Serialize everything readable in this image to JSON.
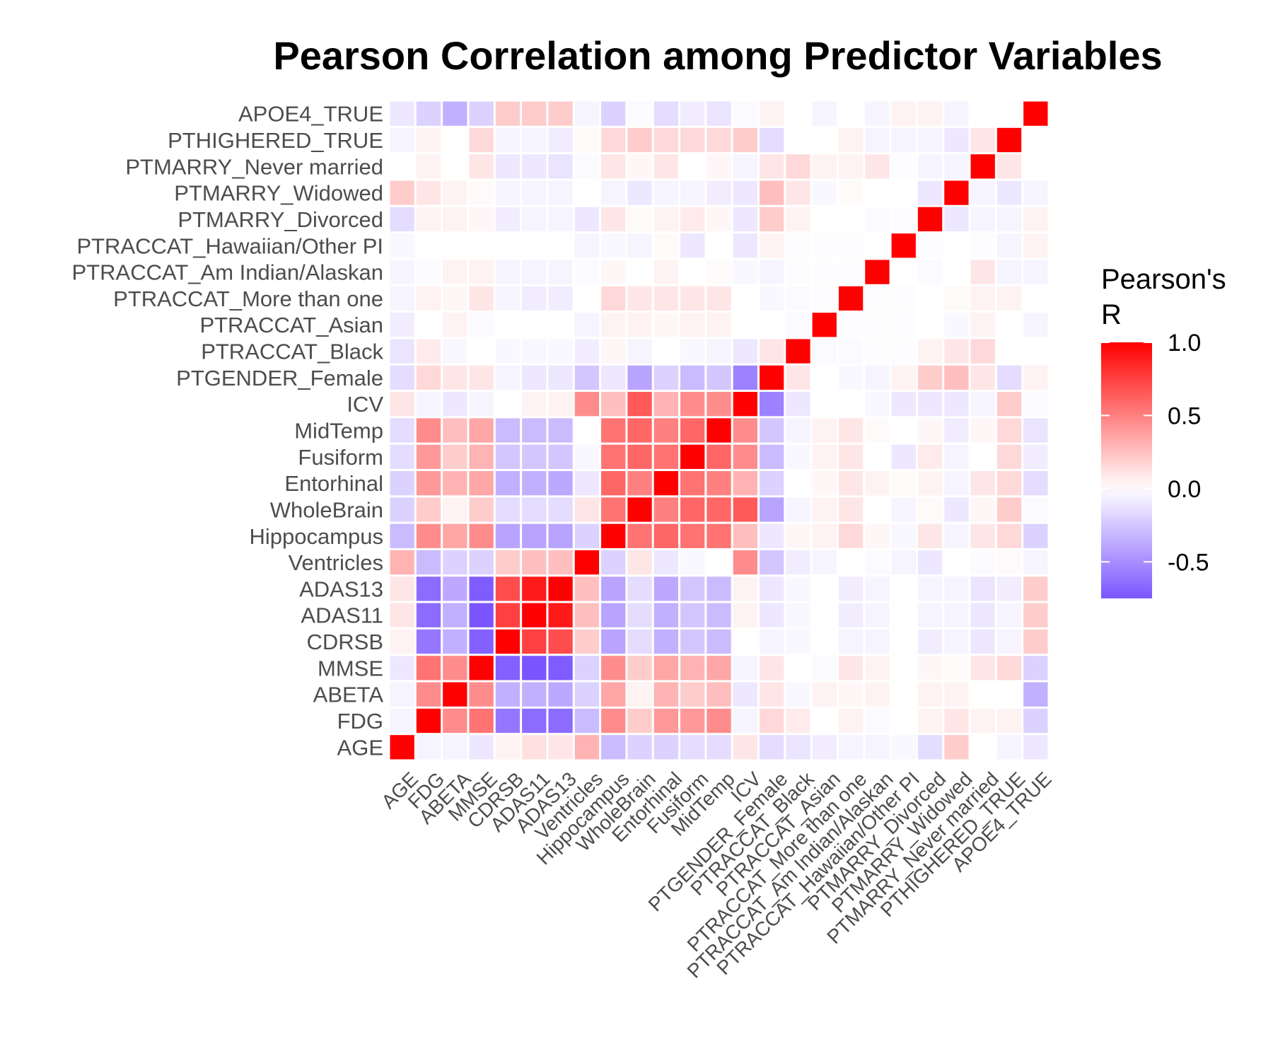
{
  "chart_data": {
    "type": "heatmap",
    "title": "Pearson Correlation among Predictor Variables",
    "legend": {
      "title_lines": [
        "Pearson's",
        "R"
      ],
      "ticks": [
        1.0,
        0.5,
        0.0,
        -0.5
      ],
      "tick_labels": [
        "1.0",
        "0.5",
        "0.0",
        "-0.5"
      ],
      "range": [
        -0.75,
        1.0
      ],
      "placement": "right"
    },
    "colors": {
      "low": "#7a55ff",
      "mid": "#ffffff",
      "high": "#ff0000"
    },
    "variables": [
      "AGE",
      "FDG",
      "ABETA",
      "MMSE",
      "CDRSB",
      "ADAS11",
      "ADAS13",
      "Ventricles",
      "Hippocampus",
      "WholeBrain",
      "Entorhinal",
      "Fusiform",
      "MidTemp",
      "ICV",
      "PTGENDER_Female",
      "PTRACCAT_Black",
      "PTRACCAT_Asian",
      "PTRACCAT_More than one",
      "PTRACCAT_Am Indian/Alaskan",
      "PTRACCAT_Hawaiian/Other PI",
      "PTMARRY_Divorced",
      "PTMARRY_Widowed",
      "PTMARRY_Never married",
      "PTHIGHERED_TRUE",
      "APOE4_TRUE"
    ],
    "matrix": [
      [
        1.0,
        -0.05,
        -0.05,
        -0.1,
        0.05,
        0.12,
        0.1,
        0.3,
        -0.3,
        -0.2,
        -0.2,
        -0.15,
        -0.15,
        0.1,
        -0.15,
        -0.12,
        -0.08,
        -0.05,
        -0.05,
        -0.03,
        -0.15,
        0.2,
        0.0,
        -0.05,
        -0.1
      ],
      [
        -0.05,
        1.0,
        0.45,
        0.55,
        -0.6,
        -0.65,
        -0.65,
        -0.3,
        0.45,
        0.2,
        0.4,
        0.4,
        0.45,
        -0.05,
        0.15,
        0.08,
        0.0,
        0.05,
        -0.02,
        0.0,
        0.05,
        0.1,
        0.05,
        0.05,
        -0.2
      ],
      [
        -0.05,
        0.45,
        1.0,
        0.45,
        -0.35,
        -0.35,
        -0.38,
        -0.2,
        0.35,
        0.05,
        0.3,
        0.2,
        0.25,
        -0.1,
        0.1,
        -0.03,
        0.05,
        0.03,
        0.05,
        0.0,
        0.05,
        0.05,
        0.0,
        0.0,
        -0.35
      ],
      [
        -0.1,
        0.55,
        0.45,
        1.0,
        -0.7,
        -0.75,
        -0.72,
        -0.2,
        0.45,
        0.2,
        0.35,
        0.3,
        0.35,
        -0.05,
        0.1,
        0.0,
        -0.02,
        0.1,
        0.05,
        0.0,
        0.03,
        0.02,
        0.1,
        0.15,
        -0.2
      ],
      [
        0.05,
        -0.6,
        -0.35,
        -0.7,
        1.0,
        0.75,
        0.7,
        0.2,
        -0.4,
        -0.15,
        -0.35,
        -0.25,
        -0.3,
        0.0,
        -0.05,
        -0.03,
        0.0,
        -0.05,
        -0.05,
        0.0,
        -0.08,
        -0.05,
        -0.1,
        -0.05,
        0.2
      ],
      [
        0.1,
        -0.65,
        -0.35,
        -0.75,
        0.75,
        1.0,
        0.9,
        0.25,
        -0.4,
        -0.15,
        -0.35,
        -0.25,
        -0.3,
        0.05,
        -0.1,
        -0.03,
        0.0,
        -0.08,
        -0.05,
        0.0,
        -0.05,
        -0.05,
        -0.1,
        -0.05,
        0.2
      ],
      [
        0.1,
        -0.65,
        -0.38,
        -0.72,
        0.7,
        0.9,
        1.0,
        0.25,
        -0.4,
        -0.15,
        -0.38,
        -0.25,
        -0.3,
        0.05,
        -0.1,
        -0.03,
        0.0,
        -0.08,
        -0.05,
        0.0,
        -0.05,
        -0.05,
        -0.12,
        -0.08,
        0.2
      ],
      [
        0.3,
        -0.3,
        -0.2,
        -0.2,
        0.2,
        0.25,
        0.25,
        1.0,
        -0.2,
        0.1,
        -0.1,
        -0.03,
        0.0,
        0.45,
        -0.25,
        -0.08,
        -0.05,
        0.0,
        -0.02,
        -0.05,
        -0.1,
        0.0,
        -0.02,
        0.02,
        -0.05
      ],
      [
        -0.3,
        0.45,
        0.35,
        0.45,
        -0.4,
        -0.4,
        -0.4,
        -0.2,
        1.0,
        0.55,
        0.6,
        0.55,
        0.55,
        0.25,
        -0.1,
        0.03,
        0.05,
        0.15,
        0.03,
        -0.03,
        0.1,
        -0.05,
        0.1,
        0.15,
        -0.2
      ],
      [
        -0.2,
        0.2,
        0.05,
        0.2,
        -0.15,
        -0.15,
        -0.15,
        0.1,
        0.55,
        1.0,
        0.5,
        0.6,
        0.6,
        0.65,
        -0.4,
        -0.05,
        0.05,
        0.1,
        0.0,
        -0.05,
        0.02,
        -0.1,
        0.03,
        0.2,
        -0.02
      ],
      [
        -0.2,
        0.4,
        0.3,
        0.35,
        -0.35,
        -0.35,
        -0.38,
        -0.1,
        0.6,
        0.5,
        1.0,
        0.55,
        0.5,
        0.3,
        -0.2,
        0.0,
        0.03,
        0.1,
        0.05,
        0.02,
        0.05,
        -0.05,
        0.1,
        0.15,
        -0.15
      ],
      [
        -0.15,
        0.4,
        0.2,
        0.3,
        -0.25,
        -0.25,
        -0.25,
        -0.03,
        0.55,
        0.6,
        0.55,
        1.0,
        0.6,
        0.45,
        -0.3,
        -0.03,
        0.05,
        0.1,
        0.0,
        -0.1,
        0.08,
        -0.05,
        0.0,
        0.15,
        -0.08
      ],
      [
        -0.15,
        0.45,
        0.25,
        0.35,
        -0.3,
        -0.3,
        -0.3,
        0.0,
        0.55,
        0.6,
        0.5,
        0.6,
        1.0,
        0.45,
        -0.25,
        -0.05,
        0.05,
        0.1,
        0.02,
        0.0,
        0.03,
        -0.08,
        0.03,
        0.15,
        -0.12
      ],
      [
        0.1,
        -0.05,
        -0.1,
        -0.05,
        0.0,
        0.05,
        0.05,
        0.45,
        0.25,
        0.65,
        0.3,
        0.45,
        0.45,
        1.0,
        -0.55,
        -0.1,
        0.0,
        0.0,
        -0.03,
        -0.1,
        -0.1,
        -0.1,
        -0.05,
        0.2,
        -0.02
      ],
      [
        -0.15,
        0.15,
        0.1,
        0.1,
        -0.05,
        -0.1,
        -0.1,
        -0.25,
        -0.1,
        -0.4,
        -0.2,
        -0.3,
        -0.25,
        -0.55,
        1.0,
        0.1,
        0.0,
        -0.03,
        -0.05,
        0.05,
        0.2,
        0.25,
        0.1,
        -0.15,
        0.05
      ],
      [
        -0.12,
        0.08,
        -0.03,
        0.0,
        -0.03,
        -0.03,
        -0.03,
        -0.08,
        0.03,
        -0.05,
        0.0,
        -0.03,
        -0.05,
        -0.1,
        0.1,
        1.0,
        -0.02,
        -0.02,
        -0.01,
        -0.01,
        0.05,
        0.1,
        0.15,
        0.0,
        0.0
      ],
      [
        -0.08,
        0.0,
        0.05,
        -0.02,
        0.0,
        0.0,
        0.0,
        -0.05,
        0.05,
        0.05,
        0.03,
        0.05,
        0.05,
        0.0,
        0.0,
        -0.02,
        1.0,
        -0.01,
        -0.01,
        -0.01,
        0.0,
        -0.03,
        0.05,
        0.0,
        -0.05
      ],
      [
        -0.05,
        0.05,
        0.03,
        0.1,
        -0.05,
        -0.08,
        -0.08,
        0.0,
        0.15,
        0.1,
        0.1,
        0.1,
        0.1,
        0.0,
        -0.03,
        -0.02,
        -0.01,
        1.0,
        -0.01,
        -0.01,
        0.0,
        0.02,
        0.05,
        0.05,
        0.0
      ],
      [
        -0.05,
        -0.02,
        0.05,
        0.05,
        -0.05,
        -0.05,
        -0.05,
        -0.02,
        0.03,
        0.0,
        0.05,
        0.0,
        0.02,
        -0.03,
        -0.05,
        -0.01,
        -0.01,
        -0.01,
        1.0,
        0.0,
        -0.02,
        0.0,
        0.1,
        -0.05,
        -0.05
      ],
      [
        -0.03,
        0.0,
        0.0,
        0.0,
        0.0,
        0.0,
        0.0,
        -0.05,
        -0.03,
        -0.05,
        0.02,
        -0.1,
        0.0,
        -0.1,
        0.05,
        -0.01,
        -0.01,
        -0.01,
        0.0,
        1.0,
        -0.01,
        0.0,
        -0.01,
        -0.05,
        0.05
      ],
      [
        -0.15,
        0.05,
        0.05,
        0.03,
        -0.08,
        -0.05,
        -0.05,
        -0.1,
        0.1,
        0.02,
        0.05,
        0.08,
        0.03,
        -0.1,
        0.2,
        0.05,
        0.0,
        0.0,
        -0.02,
        -0.01,
        1.0,
        -0.1,
        -0.05,
        -0.05,
        0.05
      ],
      [
        0.2,
        0.1,
        0.05,
        0.02,
        -0.05,
        -0.05,
        -0.05,
        0.0,
        -0.05,
        -0.1,
        -0.05,
        -0.05,
        -0.08,
        -0.1,
        0.25,
        0.1,
        -0.03,
        0.02,
        0.0,
        0.0,
        -0.1,
        1.0,
        -0.05,
        -0.1,
        -0.05
      ],
      [
        0.0,
        0.05,
        0.0,
        0.1,
        -0.1,
        -0.1,
        -0.12,
        -0.02,
        0.1,
        0.03,
        0.1,
        0.0,
        0.03,
        -0.05,
        0.1,
        0.15,
        0.05,
        0.05,
        0.1,
        -0.01,
        -0.05,
        -0.05,
        1.0,
        0.1,
        0.0
      ],
      [
        -0.05,
        0.05,
        0.0,
        0.15,
        -0.05,
        -0.05,
        -0.08,
        0.02,
        0.15,
        0.2,
        0.15,
        0.15,
        0.15,
        0.2,
        -0.15,
        0.0,
        0.0,
        0.05,
        -0.05,
        -0.05,
        -0.05,
        -0.1,
        0.1,
        1.0,
        0.0
      ],
      [
        -0.1,
        -0.2,
        -0.35,
        -0.2,
        0.2,
        0.2,
        0.2,
        -0.05,
        -0.2,
        -0.02,
        -0.15,
        -0.08,
        -0.12,
        -0.02,
        0.05,
        0.0,
        -0.05,
        0.0,
        -0.05,
        0.05,
        0.05,
        -0.05,
        0.0,
        0.0,
        1.0
      ]
    ]
  }
}
